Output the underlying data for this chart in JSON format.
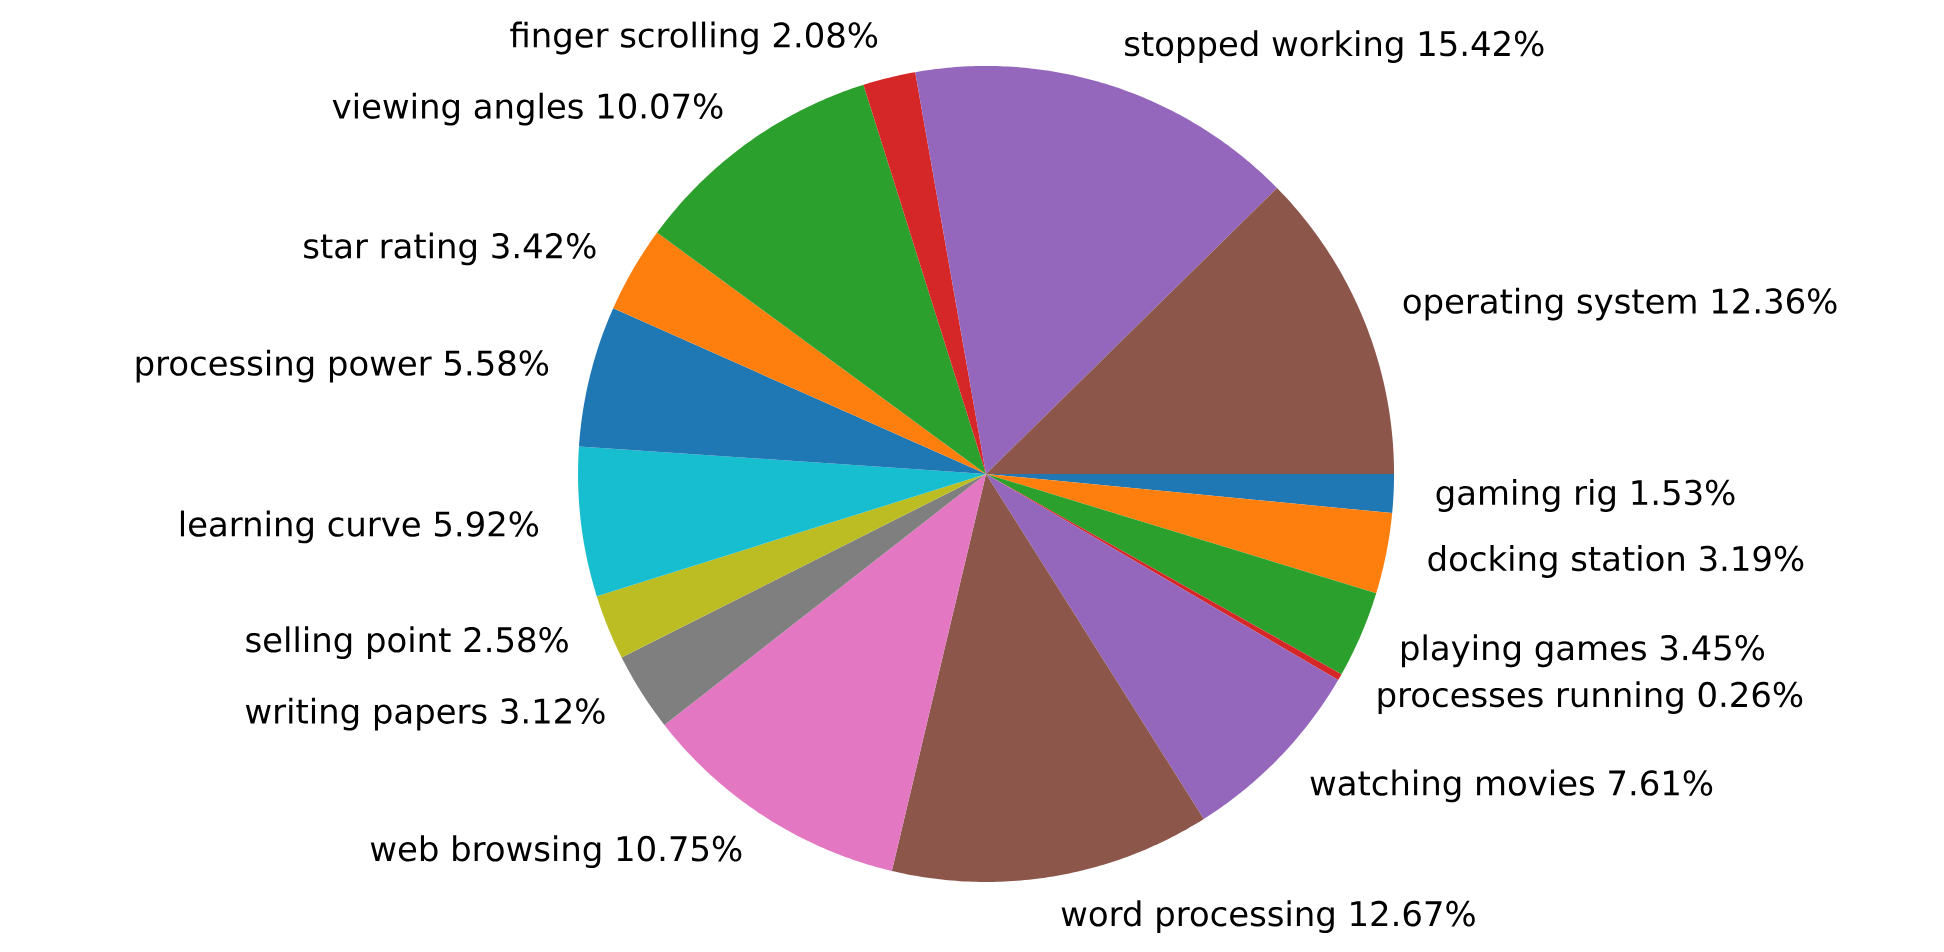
{
  "chart_data": {
    "type": "pie",
    "categories": [
      "gaming rig",
      "docking station",
      "playing games",
      "processes running",
      "watching movies",
      "word processing",
      "web browsing",
      "writing papers",
      "selling point",
      "learning curve",
      "processing power",
      "star rating",
      "viewing angles",
      "finger scrolling",
      "stopped working",
      "operating system"
    ],
    "values": [
      1.53,
      3.19,
      3.45,
      0.26,
      7.61,
      12.67,
      10.75,
      3.12,
      2.58,
      5.92,
      5.58,
      3.42,
      10.07,
      2.08,
      15.42,
      12.36
    ],
    "value_labels": [
      "1.53%",
      "3.19%",
      "3.45%",
      "0.26%",
      "7.61%",
      "12.67%",
      "10.75%",
      "3.12%",
      "2.58%",
      "5.92%",
      "5.58%",
      "3.42%",
      "10.07%",
      "2.08%",
      "15.42%",
      "12.36%"
    ],
    "colors": [
      "#1f77b4",
      "#ff7f0e",
      "#2ca02c",
      "#d62728",
      "#9467bd",
      "#8c564b",
      "#e377c2",
      "#7f7f7f",
      "#bcbd22",
      "#17becf",
      "#1f77b4",
      "#ff7f0e",
      "#2ca02c",
      "#d62728",
      "#9467bd",
      "#8c564b"
    ]
  }
}
